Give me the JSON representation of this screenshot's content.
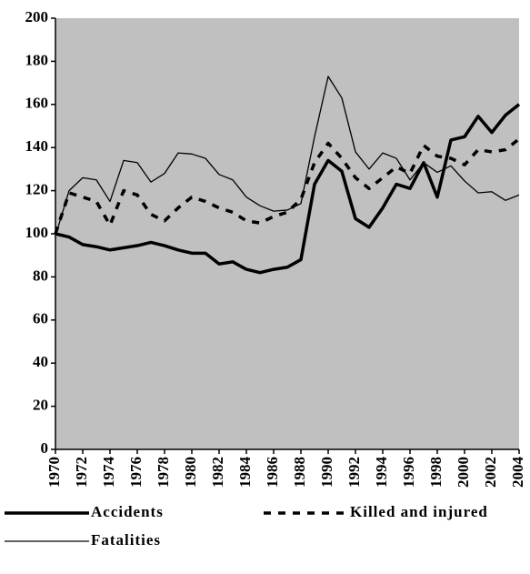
{
  "chart_data": {
    "type": "line",
    "x": [
      1970,
      1971,
      1972,
      1973,
      1974,
      1975,
      1976,
      1977,
      1978,
      1979,
      1980,
      1981,
      1982,
      1983,
      1984,
      1985,
      1986,
      1987,
      1988,
      1989,
      1990,
      1991,
      1992,
      1993,
      1994,
      1995,
      1996,
      1997,
      1998,
      1999,
      2000,
      2001,
      2002,
      2003,
      2004
    ],
    "xlim": [
      1970,
      2004
    ],
    "xticks": [
      1970,
      1972,
      1974,
      1976,
      1978,
      1980,
      1982,
      1984,
      1986,
      1988,
      1990,
      1992,
      1994,
      1996,
      1998,
      2000,
      2002,
      2004
    ],
    "ylim": [
      0,
      200
    ],
    "yticks": [
      0,
      20,
      40,
      60,
      80,
      100,
      120,
      140,
      160,
      180,
      200
    ],
    "background": "#c0c0c0",
    "series": [
      {
        "name": "Accidents",
        "color": "#000000",
        "width": 3.5,
        "dash": "none",
        "values": [
          100,
          98.5,
          95,
          94,
          92.5,
          93.5,
          94.5,
          96,
          94.5,
          92.5,
          91,
          91,
          86,
          87,
          83.5,
          82,
          83.5,
          84.5,
          88,
          123,
          134,
          129,
          107,
          103,
          112,
          123,
          121,
          133,
          117,
          143.5,
          145,
          154.5,
          147,
          155,
          160
        ]
      },
      {
        "name": "Killed and injured",
        "color": "#000000",
        "width": 3.5,
        "dash": "8,8",
        "values": [
          100,
          119,
          117,
          115,
          104,
          120,
          118,
          109,
          106,
          112,
          117,
          115,
          112,
          110,
          106,
          105,
          108,
          110,
          116,
          133,
          142,
          135,
          126,
          121,
          126,
          131,
          128,
          141,
          136,
          135,
          132,
          139,
          138,
          139,
          144
        ]
      },
      {
        "name": "Fatalities",
        "color": "#000000",
        "width": 1.3,
        "dash": "none",
        "values": [
          99,
          120,
          126,
          125,
          115,
          134,
          133,
          124,
          128,
          137.5,
          137,
          135,
          127.5,
          125,
          117,
          113,
          110.5,
          111,
          114,
          145,
          173,
          163,
          138,
          130,
          137.5,
          135,
          125,
          133,
          128.5,
          131.5,
          124.5,
          119,
          119.5,
          115.5,
          118
        ]
      }
    ]
  }
}
